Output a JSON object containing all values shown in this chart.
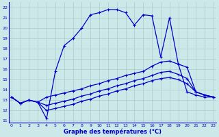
{
  "xlabel": "Graphe des températures (°C)",
  "bg_color": "#cce8e8",
  "grid_color": "#aacccc",
  "line_color": "#0000cc",
  "x_ticks": [
    0,
    1,
    2,
    3,
    4,
    5,
    6,
    7,
    8,
    9,
    10,
    11,
    12,
    13,
    14,
    15,
    16,
    17,
    18,
    19,
    20,
    21,
    22,
    23
  ],
  "y_ticks": [
    11,
    12,
    13,
    14,
    15,
    16,
    17,
    18,
    19,
    20,
    21,
    22
  ],
  "ylim": [
    10.8,
    22.5
  ],
  "xlim": [
    -0.3,
    23.3
  ],
  "line1_x": [
    0,
    1,
    2,
    3,
    4,
    5,
    6,
    7,
    8,
    9,
    10,
    11,
    12,
    13,
    14,
    15,
    16,
    17,
    18,
    19,
    20,
    21,
    22,
    23
  ],
  "line1_y": [
    13.3,
    12.7,
    13.0,
    12.8,
    11.2,
    15.8,
    18.3,
    19.0,
    20.0,
    21.3,
    21.5,
    21.8,
    21.8,
    21.5,
    20.3,
    21.3,
    21.2,
    17.2,
    21.0,
    16.5,
    13.8,
    13.5,
    13.3,
    13.3
  ],
  "line2_x": [
    0,
    1,
    2,
    3,
    4,
    5,
    6,
    7,
    8,
    9,
    10,
    11,
    12,
    13,
    14,
    15,
    16,
    17,
    18,
    19,
    20,
    21,
    22,
    23
  ],
  "line2_y": [
    13.3,
    12.7,
    13.0,
    12.8,
    13.3,
    13.5,
    13.7,
    13.9,
    14.1,
    14.4,
    14.6,
    14.9,
    15.1,
    15.4,
    15.6,
    15.8,
    16.3,
    16.7,
    16.8,
    16.5,
    16.2,
    13.8,
    13.5,
    13.3
  ],
  "line3_x": [
    0,
    1,
    2,
    3,
    4,
    5,
    6,
    7,
    8,
    9,
    10,
    11,
    12,
    13,
    14,
    15,
    16,
    17,
    18,
    19,
    20,
    21,
    22,
    23
  ],
  "line3_y": [
    13.3,
    12.7,
    13.0,
    12.8,
    12.5,
    12.7,
    12.9,
    13.1,
    13.4,
    13.6,
    13.9,
    14.1,
    14.4,
    14.6,
    14.9,
    15.1,
    15.4,
    15.7,
    15.8,
    15.5,
    15.1,
    13.8,
    13.5,
    13.3
  ],
  "line4_x": [
    0,
    1,
    2,
    3,
    4,
    5,
    6,
    7,
    8,
    9,
    10,
    11,
    12,
    13,
    14,
    15,
    16,
    17,
    18,
    19,
    20,
    21,
    22,
    23
  ],
  "line4_y": [
    13.3,
    12.7,
    13.0,
    12.8,
    12.0,
    12.2,
    12.4,
    12.6,
    12.9,
    13.1,
    13.4,
    13.6,
    13.9,
    14.1,
    14.4,
    14.6,
    14.9,
    15.1,
    15.2,
    15.0,
    14.6,
    13.8,
    13.5,
    13.3
  ]
}
